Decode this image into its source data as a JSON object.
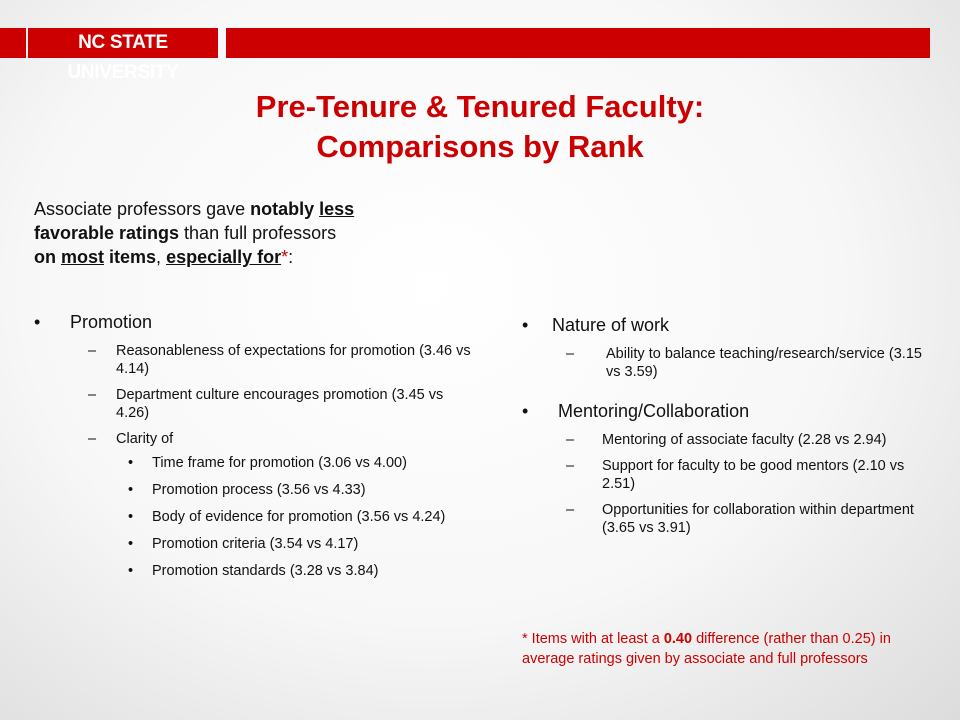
{
  "header": {
    "logo_text": "NC STATE UNIVERSITY",
    "brand_color": "#cc0000"
  },
  "title": {
    "line1": "Pre-Tenure & Tenured Faculty:",
    "line2": "Comparisons by Rank"
  },
  "intro": {
    "t1": "Associate professors gave ",
    "t2": "notably ",
    "t3": "less",
    "t4": "favorable ratings",
    "t5": " than full professors ",
    "t6": "on ",
    "t7": "most",
    "t8": " items",
    "t9": ", ",
    "t10": "especially for",
    "t11": "*",
    "t12": ":"
  },
  "left": {
    "heading": "Promotion",
    "items": [
      "Reasonableness of expectations for promotion (3.46 vs 4.14)",
      "Department culture encourages promotion (3.45 vs 4.26)",
      "Clarity of"
    ],
    "subitems": [
      "Time frame for promotion (3.06 vs 4.00)",
      "Promotion process (3.56 vs 4.33)",
      "Body of evidence for promotion (3.56 vs 4.24)",
      "Promotion criteria (3.54 vs 4.17)",
      "Promotion standards (3.28 vs 3.84)"
    ]
  },
  "right": {
    "heading1": "Nature of work",
    "items1": [
      "Ability to balance teaching/research/service (3.15 vs 3.59)"
    ],
    "heading2": "Mentoring/Collaboration",
    "items2": [
      "Mentoring of associate faculty (2.28 vs 2.94)",
      "Support for faculty to be good mentors (2.10 vs 2.51)",
      "Opportunities for collaboration within department (3.65 vs 3.91)"
    ]
  },
  "footnote": {
    "p1": "* Items with at least a ",
    "p2": "0.40",
    "p3": " difference (rather than 0.25)  in average ratings given by associate and full professors"
  },
  "glyphs": {
    "bullet": "•",
    "dash": "–"
  }
}
